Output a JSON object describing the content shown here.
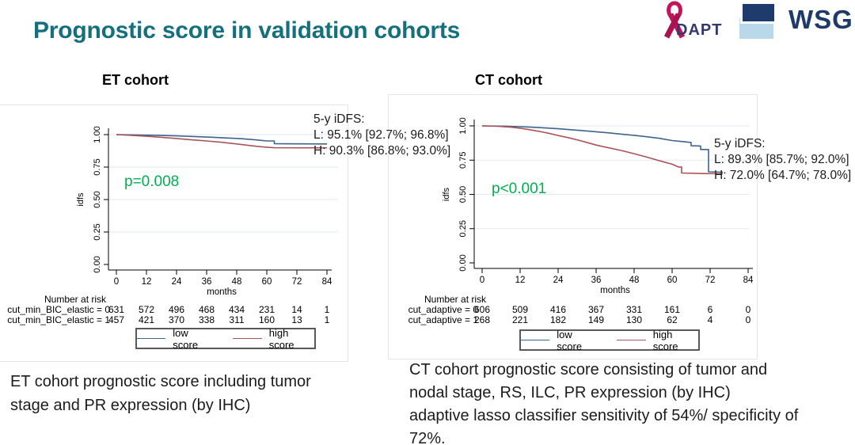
{
  "slide": {
    "title": "Prognostic score in validation cohorts",
    "title_color": "#14707c",
    "p_value_color": "#00b050",
    "logos": {
      "adapt_text": "DAPT",
      "wsg_text": "WSG",
      "ribbon_color": "#c2155b",
      "adapt_navy": "#333a6b",
      "wsg_navy": "#1e3b6c",
      "wsg_lightblue": "#b9d9ea"
    },
    "captions": {
      "et": "ET cohort prognostic score including tumor\nstage and PR expression (by IHC)",
      "ct": "CT cohort prognostic score consisting of tumor and\nnodal stage, RS, ILC, PR expression (by IHC)\nadaptive lasso classifier sensitivity of 54%/ specificity of\n72%."
    }
  },
  "chart_data": [
    {
      "type": "line",
      "subtype": "kaplan-meier",
      "title": "ET cohort",
      "p_label": "p=0.008",
      "annotation_lines": [
        "5-y iDFS:",
        "L: 95.1% [92.7%; 96.8%]",
        "H: 90.3% [86.8%; 93.0%]"
      ],
      "five_year_idfs": {
        "low": "95.1% [92.7%; 96.8%]",
        "high": "90.3% [86.8%; 93.0%]"
      },
      "xlabel": "months",
      "ylabel": "idfs",
      "xlim": [
        0,
        84
      ],
      "ylim": [
        0,
        1
      ],
      "xticks": [
        0,
        12,
        24,
        36,
        48,
        60,
        72,
        84
      ],
      "ytick_labels": [
        "0.00",
        "0.25",
        "0.50",
        "0.75",
        "1.00"
      ],
      "grid": "horizontal",
      "legend_position": "bottom",
      "series": [
        {
          "name": "low score",
          "color": "#3e648e",
          "points": [
            [
              0,
              1.0
            ],
            [
              6,
              0.998
            ],
            [
              12,
              0.996
            ],
            [
              18,
              0.993
            ],
            [
              24,
              0.99
            ],
            [
              30,
              0.986
            ],
            [
              34,
              0.983
            ],
            [
              38,
              0.98
            ],
            [
              42,
              0.976
            ],
            [
              46,
              0.972
            ],
            [
              50,
              0.968
            ],
            [
              54,
              0.962
            ],
            [
              57,
              0.957
            ],
            [
              60,
              0.951
            ],
            [
              63,
              0.951
            ],
            [
              63,
              0.93
            ],
            [
              66,
              0.929
            ],
            [
              84,
              0.928
            ]
          ]
        },
        {
          "name": "high score",
          "color": "#ab5358",
          "points": [
            [
              0,
              1.0
            ],
            [
              6,
              0.994
            ],
            [
              12,
              0.987
            ],
            [
              18,
              0.979
            ],
            [
              24,
              0.97
            ],
            [
              30,
              0.96
            ],
            [
              36,
              0.951
            ],
            [
              42,
              0.941
            ],
            [
              48,
              0.928
            ],
            [
              52,
              0.919
            ],
            [
              56,
              0.91
            ],
            [
              60,
              0.903
            ],
            [
              63,
              0.899
            ],
            [
              84,
              0.898
            ]
          ]
        }
      ],
      "risk_header": "Number at risk",
      "risk_rows": [
        {
          "label": "cut_min_BIC_elastic = 0",
          "values": [
            "631",
            "572",
            "496",
            "468",
            "434",
            "231",
            "14",
            "1"
          ]
        },
        {
          "label": "cut_min_BIC_elastic = 1",
          "values": [
            "457",
            "421",
            "370",
            "338",
            "311",
            "160",
            "13",
            "1"
          ]
        }
      ],
      "legend": [
        {
          "name": "low score",
          "color": "#3e648e"
        },
        {
          "name": "high score",
          "color": "#ab5358"
        }
      ]
    },
    {
      "type": "line",
      "subtype": "kaplan-meier",
      "title": "CT cohort",
      "p_label": "p<0.001",
      "annotation_lines": [
        "5-y iDFS:",
        "L: 89.3% [85.7%; 92.0%]",
        "H: 72.0% [64.7%; 78.0%]"
      ],
      "five_year_idfs": {
        "low": "89.3% [85.7%; 92.0%]",
        "high": "72.0% [64.7%; 78.0%]"
      },
      "xlabel": "months",
      "ylabel": "idfs",
      "xlim": [
        0,
        84
      ],
      "ylim": [
        0,
        1
      ],
      "xticks": [
        0,
        12,
        24,
        36,
        48,
        60,
        72,
        84
      ],
      "ytick_labels": [
        "0.00",
        "0.25",
        "0.50",
        "0.75",
        "1.00"
      ],
      "grid": "horizontal",
      "legend_position": "bottom",
      "series": [
        {
          "name": "low score",
          "color": "#3e648e",
          "points": [
            [
              0,
              1.0
            ],
            [
              6,
              0.998
            ],
            [
              12,
              0.994
            ],
            [
              16,
              0.99
            ],
            [
              20,
              0.985
            ],
            [
              24,
              0.979
            ],
            [
              28,
              0.972
            ],
            [
              32,
              0.965
            ],
            [
              36,
              0.957
            ],
            [
              40,
              0.949
            ],
            [
              44,
              0.94
            ],
            [
              48,
              0.931
            ],
            [
              52,
              0.921
            ],
            [
              56,
              0.909
            ],
            [
              60,
              0.893
            ],
            [
              63,
              0.886
            ],
            [
              66,
              0.879
            ],
            [
              66,
              0.855
            ],
            [
              69,
              0.853
            ],
            [
              69,
              0.828
            ],
            [
              71.5,
              0.828
            ],
            [
              71.5,
              0.665
            ],
            [
              76,
              0.662
            ]
          ]
        },
        {
          "name": "high score",
          "color": "#ab5358",
          "points": [
            [
              0,
              1.0
            ],
            [
              5,
              0.997
            ],
            [
              9,
              0.991
            ],
            [
              12,
              0.983
            ],
            [
              15,
              0.972
            ],
            [
              18,
              0.96
            ],
            [
              21,
              0.946
            ],
            [
              24,
              0.93
            ],
            [
              27,
              0.915
            ],
            [
              30,
              0.898
            ],
            [
              33,
              0.88
            ],
            [
              36,
              0.86
            ],
            [
              40,
              0.84
            ],
            [
              44,
              0.82
            ],
            [
              48,
              0.797
            ],
            [
              52,
              0.772
            ],
            [
              55,
              0.752
            ],
            [
              58,
              0.733
            ],
            [
              60,
              0.72
            ],
            [
              62,
              0.7
            ],
            [
              63,
              0.7
            ],
            [
              63,
              0.656
            ],
            [
              70,
              0.652
            ],
            [
              76,
              0.65
            ]
          ]
        }
      ],
      "risk_header": "Number at risk",
      "risk_rows": [
        {
          "label": "cut_adaptive = 0",
          "values": [
            "606",
            "509",
            "416",
            "367",
            "331",
            "161",
            "6",
            "0"
          ]
        },
        {
          "label": "cut_adaptive = 1",
          "values": [
            "268",
            "221",
            "182",
            "149",
            "130",
            "62",
            "4",
            "0"
          ]
        }
      ],
      "legend": [
        {
          "name": "low score",
          "color": "#3e648e"
        },
        {
          "name": "high score",
          "color": "#ab5358"
        }
      ]
    }
  ]
}
